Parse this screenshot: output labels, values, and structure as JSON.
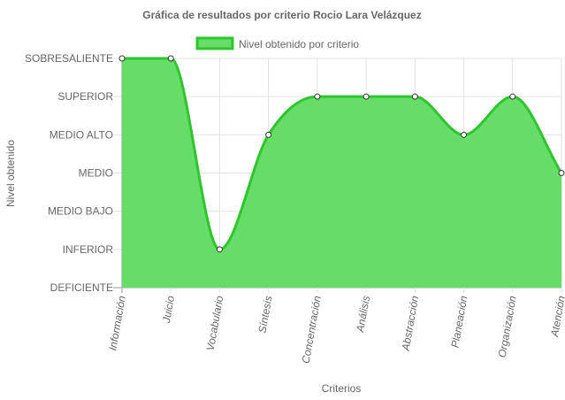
{
  "chart_data": {
    "type": "area",
    "title": "Gráfica de resultados por criterio Rocio Lara Velázquez",
    "xlabel": "Criterios",
    "ylabel": "Nivel obtenido",
    "categories": [
      "Información",
      "Juicio",
      "Vocabulario",
      "Síntesis",
      "Concentración",
      "Análisis",
      "Abstracción",
      "Planeación",
      "Organización",
      "Atención"
    ],
    "y_levels": [
      "DEFICIENTE",
      "INFERIOR",
      "MEDIO BAJO",
      "MEDIO",
      "MEDIO ALTO",
      "SUPERIOR",
      "SOBRESALIENTE"
    ],
    "series": [
      {
        "name": "Nivel obtenido por criterio",
        "values": [
          6,
          6,
          1,
          4,
          5,
          5,
          5,
          4,
          5,
          3
        ],
        "value_labels": [
          "SOBRESALIENTE",
          "SOBRESALIENTE",
          "INFERIOR",
          "MEDIO ALTO",
          "SUPERIOR",
          "SUPERIOR",
          "SUPERIOR",
          "MEDIO ALTO",
          "SUPERIOR",
          "MEDIO"
        ]
      }
    ],
    "ylim": [
      0,
      6
    ],
    "grid": true,
    "legend_position": "top",
    "colors": {
      "fill": "#66dd66",
      "line": "#2ec52e",
      "grid": "#e2e2e2",
      "axis": "#999999"
    }
  }
}
